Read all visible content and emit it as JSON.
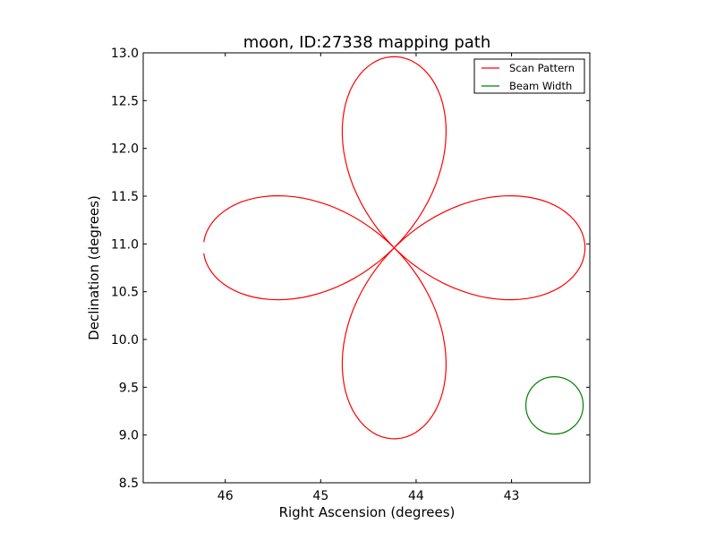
{
  "chart_data": {
    "type": "line",
    "title": "moon, ID:27338 mapping path",
    "xlabel": "Right Ascension (degrees)",
    "ylabel": "Declination (degrees)",
    "xlim": [
      46.86,
      42.18
    ],
    "ylim": [
      8.5,
      13.0
    ],
    "x_inverted": true,
    "xticks": [
      46,
      45,
      44,
      43
    ],
    "xtick_labels": [
      "46",
      "45",
      "44",
      "43"
    ],
    "yticks": [
      8.5,
      9.0,
      9.5,
      10.0,
      10.5,
      11.0,
      11.5,
      12.0,
      12.5,
      13.0
    ],
    "ytick_labels": [
      "8.5",
      "9.0",
      "9.5",
      "10.0",
      "10.5",
      "11.0",
      "11.5",
      "12.0",
      "12.5",
      "13.0"
    ],
    "grid": false,
    "legend_position": "top-right",
    "series": [
      {
        "name": "Scan Pattern",
        "color": "#ff0000",
        "shape": "four-petal rose r = A·cos(2θ)",
        "center_ra": 44.23,
        "center_dec": 10.96,
        "amplitude_deg": 2.0,
        "start_angle_rad": 0.03
      },
      {
        "name": "Beam Width",
        "color": "#008000",
        "shape": "circle",
        "center_ra": 42.55,
        "center_dec": 9.31,
        "radius_deg": 0.3
      }
    ]
  }
}
